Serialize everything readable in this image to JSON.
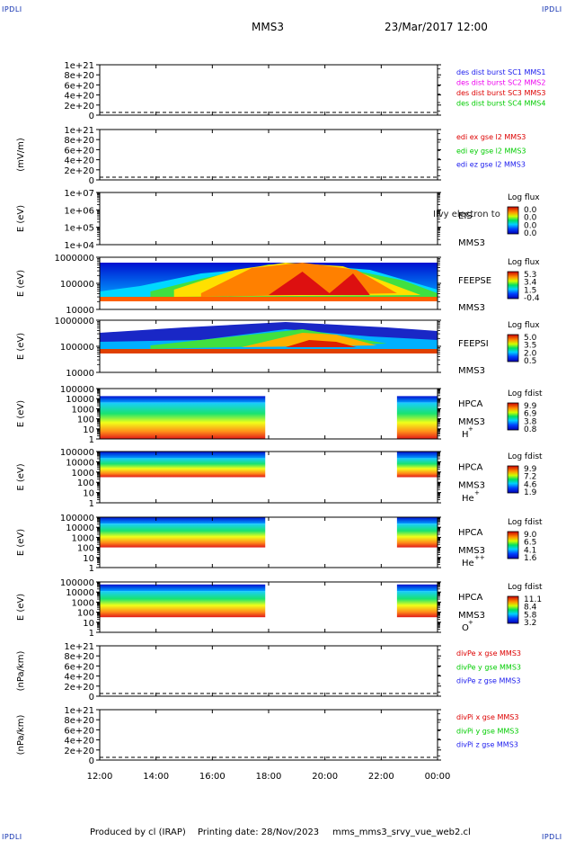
{
  "corners": {
    "tl": "IPDLI",
    "tr": "IPDLI",
    "bl": "IPDLI",
    "br": "IPDLI"
  },
  "header": {
    "spacecraft": "MMS3",
    "datetime": "23/Mar/2017 12:00"
  },
  "footer": {
    "produced": "Produced by cl (IRAP)",
    "printing": "Printing date: 28/Nov/2023",
    "file": "mms_mms3_srvy_vue_web2.cl"
  },
  "time_axis": {
    "ticks": [
      "12:00",
      "14:00",
      "16:00",
      "18:00",
      "20:00",
      "22:00",
      "00:00"
    ]
  },
  "chart_data": [
    {
      "type": "line",
      "id": "des-dist",
      "yticks": [
        "1e+21",
        "8e+20",
        "6e+20",
        "4e+20",
        "2e+20",
        "0"
      ],
      "ylabel": "",
      "legend": [
        {
          "text": "des dist burst SC1 MMS1",
          "color": "#1a1aee"
        },
        {
          "text": "des dist burst SC2 MMS2",
          "color": "#ee00ee"
        },
        {
          "text": "des dist burst SC3 MMS3",
          "color": "#dd0000"
        },
        {
          "text": "des dist burst SC4 MMS4",
          "color": "#00cc00"
        }
      ]
    },
    {
      "type": "line",
      "id": "edi",
      "yticks": [
        "1e+21",
        "8e+20",
        "6e+20",
        "4e+20",
        "2e+20",
        "0"
      ],
      "ylabel": "(mV/m)",
      "legend": [
        {
          "text": "edi ex gse l2 MMS3",
          "color": "#dd0000"
        },
        {
          "text": "edi ey gse l2 MMS3",
          "color": "#00cc00"
        },
        {
          "text": "edi ez gse l2 MMS3",
          "color": "#1a1aee"
        }
      ]
    },
    {
      "type": "heatmap",
      "id": "eis",
      "yticks": [
        "1e+07",
        "1e+06",
        "1e+05",
        "1e+04"
      ],
      "ylabel": "E (eV)",
      "instrument": "EIS",
      "sc": "MMS3",
      "species": "",
      "overlay_text": "Ilvy electron to",
      "cbar": {
        "title": "Log flux",
        "ticks": [
          "0.0",
          "0.0",
          "0.0",
          "0.0"
        ]
      }
    },
    {
      "type": "heatmap",
      "id": "feepse",
      "yticks": [
        "1000000",
        "100000",
        "10000"
      ],
      "ylabel": "E (eV)",
      "instrument": "FEEPSE",
      "sc": "MMS3",
      "species": "",
      "cbar": {
        "title": "Log flux",
        "ticks": [
          "5.3",
          "3.4",
          "1.5",
          "-0.4"
        ]
      }
    },
    {
      "type": "heatmap",
      "id": "feepsi",
      "yticks": [
        "1000000",
        "100000",
        "10000"
      ],
      "ylabel": "E (eV)",
      "instrument": "FEEPSI",
      "sc": "MMS3",
      "species": "",
      "cbar": {
        "title": "Log flux",
        "ticks": [
          "5.0",
          "3.5",
          "2.0",
          "0.5"
        ]
      }
    },
    {
      "type": "heatmap",
      "id": "hpca-h",
      "yticks": [
        "100000",
        "10000",
        "1000",
        "100",
        "10",
        "1"
      ],
      "ylabel": "E (eV)",
      "instrument": "HPCA",
      "sc": "MMS3",
      "species": "H",
      "species_sup": "+",
      "cbar": {
        "title": "Log fdist",
        "ticks": [
          "9.9",
          "6.9",
          "3.8",
          "0.8"
        ]
      }
    },
    {
      "type": "heatmap",
      "id": "hpca-he",
      "yticks": [
        "100000",
        "10000",
        "1000",
        "100",
        "10",
        "1"
      ],
      "ylabel": "E (eV)",
      "instrument": "HPCA",
      "sc": "MMS3",
      "species": "He",
      "species_sup": "+",
      "cbar": {
        "title": "Log fdist",
        "ticks": [
          "9.9",
          "7.2",
          "4.6",
          "1.9"
        ]
      }
    },
    {
      "type": "heatmap",
      "id": "hpca-he2",
      "yticks": [
        "100000",
        "10000",
        "1000",
        "100",
        "10",
        "1"
      ],
      "ylabel": "E (eV)",
      "instrument": "HPCA",
      "sc": "MMS3",
      "species": "He",
      "species_sup": "++",
      "cbar": {
        "title": "Log fdist",
        "ticks": [
          "9.0",
          "6.5",
          "4.1",
          "1.6"
        ]
      }
    },
    {
      "type": "heatmap",
      "id": "hpca-o",
      "yticks": [
        "100000",
        "10000",
        "1000",
        "100",
        "10",
        "1"
      ],
      "ylabel": "E (eV)",
      "instrument": "HPCA",
      "sc": "MMS3",
      "species": "O",
      "species_sup": "+",
      "cbar": {
        "title": "Log fdist",
        "ticks": [
          "11.1",
          "8.4",
          "5.8",
          "3.2"
        ]
      }
    },
    {
      "type": "line",
      "id": "divpe",
      "yticks": [
        "1e+21",
        "8e+20",
        "6e+20",
        "4e+20",
        "2e+20",
        "0"
      ],
      "ylabel": "(nPa/km)",
      "legend": [
        {
          "text": "divPe x gse MMS3",
          "color": "#dd0000"
        },
        {
          "text": "divPe y gse MMS3",
          "color": "#00cc00"
        },
        {
          "text": "divPe z gse MMS3",
          "color": "#1a1aee"
        }
      ]
    },
    {
      "type": "line",
      "id": "divpi",
      "yticks": [
        "1e+21",
        "8e+20",
        "6e+20",
        "4e+20",
        "2e+20",
        "0"
      ],
      "ylabel": "(nPa/km)",
      "legend": [
        {
          "text": "divPi x gse MMS3",
          "color": "#dd0000"
        },
        {
          "text": "divPi y gse MMS3",
          "color": "#00cc00"
        },
        {
          "text": "divPi z gse MMS3",
          "color": "#1a1aee"
        }
      ]
    }
  ]
}
